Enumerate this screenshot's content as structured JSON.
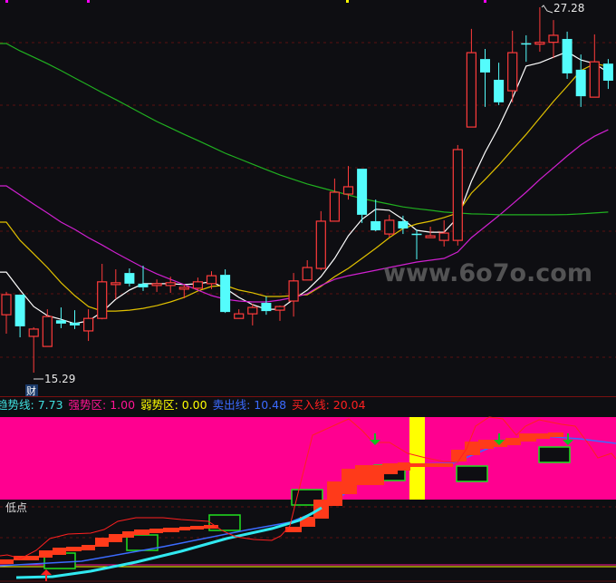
{
  "chart_data": {
    "type": "candlestick",
    "candle_fields": [
      "open",
      "close",
      "high",
      "low"
    ],
    "candles": [
      [
        17.19,
        17.85,
        17.94,
        16.57
      ],
      [
        17.85,
        16.81,
        17.85,
        16.45
      ],
      [
        16.48,
        16.72,
        16.78,
        15.29
      ],
      [
        16.15,
        17.13,
        17.37,
        16.15
      ],
      [
        17.01,
        16.9,
        17.43,
        16.75
      ],
      [
        16.93,
        16.84,
        17.34,
        16.72
      ],
      [
        16.66,
        17.07,
        17.37,
        16.33
      ],
      [
        17.07,
        18.27,
        18.86,
        17.04
      ],
      [
        18.18,
        18.24,
        18.68,
        17.7
      ],
      [
        18.56,
        18.21,
        18.71,
        18.12
      ],
      [
        18.21,
        18.09,
        18.8,
        17.97
      ],
      [
        18.15,
        18.21,
        18.35,
        17.94
      ],
      [
        18.15,
        18.24,
        18.44,
        17.91
      ],
      [
        18.03,
        18.09,
        18.18,
        17.73
      ],
      [
        18.06,
        18.27,
        18.41,
        18.0
      ],
      [
        18.21,
        18.47,
        18.62,
        18.03
      ],
      [
        18.5,
        17.28,
        18.68,
        17.25
      ],
      [
        17.07,
        17.22,
        17.37,
        17.07
      ],
      [
        17.22,
        17.43,
        17.55,
        16.84
      ],
      [
        17.58,
        17.31,
        17.79,
        17.19
      ],
      [
        17.34,
        17.46,
        17.49,
        16.99
      ],
      [
        17.64,
        18.3,
        18.56,
        17.13
      ],
      [
        18.33,
        18.74,
        18.98,
        18.33
      ],
      [
        18.71,
        20.26,
        20.59,
        18.65
      ],
      [
        20.26,
        21.21,
        21.66,
        20.26
      ],
      [
        21.15,
        21.39,
        22.07,
        20.97
      ],
      [
        21.98,
        20.47,
        21.98,
        20.2
      ],
      [
        20.26,
        19.96,
        20.97,
        19.93
      ],
      [
        19.84,
        20.29,
        20.47,
        19.72
      ],
      [
        20.26,
        20.02,
        20.44,
        19.84
      ],
      [
        19.85,
        19.84,
        19.99,
        19.01
      ],
      [
        19.72,
        19.78,
        20.08,
        19.72
      ],
      [
        19.63,
        19.87,
        20.29,
        19.43
      ],
      [
        19.63,
        22.61,
        22.76,
        19.46
      ],
      [
        23.35,
        25.79,
        26.57,
        23.35
      ],
      [
        25.58,
        25.14,
        25.91,
        24.01
      ],
      [
        24.9,
        24.16,
        25.46,
        24.07
      ],
      [
        24.54,
        25.79,
        26.51,
        24.16
      ],
      [
        26.1,
        26.07,
        26.36,
        25.49
      ],
      [
        26.07,
        26.13,
        27.28,
        25.82
      ],
      [
        26.13,
        26.36,
        26.86,
        25.61
      ],
      [
        26.24,
        25.11,
        26.48,
        24.93
      ],
      [
        25.23,
        24.36,
        25.73,
        24.01
      ],
      [
        24.33,
        25.49,
        26.39,
        24.33
      ],
      [
        25.43,
        24.87,
        25.58,
        24.6
      ]
    ],
    "moving_averages": [
      {
        "color": "#ffffff",
        "values": [
          18.59,
          18.0,
          17.46,
          17.16,
          17.04,
          16.9,
          16.99,
          17.28,
          17.7,
          18.0,
          18.21,
          18.21,
          18.21,
          18.18,
          18.21,
          18.27,
          18.06,
          17.76,
          17.52,
          17.37,
          17.37,
          17.7,
          18.0,
          18.44,
          19.04,
          19.78,
          20.32,
          20.65,
          20.62,
          20.32,
          19.96,
          19.9,
          19.9,
          20.38,
          21.57,
          22.52,
          23.35,
          24.3,
          25.35,
          25.46,
          25.64,
          25.82,
          25.55,
          25.43,
          25.14
        ]
      },
      {
        "color": "#e0c000",
        "values": [
          20.23,
          19.63,
          19.19,
          18.74,
          18.24,
          17.82,
          17.46,
          17.31,
          17.31,
          17.34,
          17.4,
          17.49,
          17.61,
          17.76,
          17.97,
          18.12,
          18.15,
          18.0,
          17.91,
          17.79,
          17.79,
          17.82,
          17.85,
          18.12,
          18.44,
          18.71,
          19.04,
          19.37,
          19.72,
          20.02,
          20.17,
          20.26,
          20.38,
          20.53,
          21.18,
          21.63,
          22.1,
          22.61,
          23.11,
          23.65,
          24.19,
          24.69,
          25.2,
          25.43,
          25.34
        ]
      },
      {
        "color": "#d020d0",
        "values": [
          21.42,
          21.12,
          20.82,
          20.53,
          20.23,
          19.99,
          19.72,
          19.48,
          19.22,
          18.98,
          18.74,
          18.53,
          18.35,
          18.18,
          18.0,
          17.82,
          17.7,
          17.64,
          17.61,
          17.61,
          17.67,
          17.76,
          17.88,
          18.15,
          18.35,
          18.47,
          18.56,
          18.65,
          18.74,
          18.83,
          18.92,
          18.98,
          19.04,
          19.25,
          19.72,
          20.08,
          20.44,
          20.82,
          21.21,
          21.63,
          22.01,
          22.4,
          22.76,
          23.05,
          23.26
        ]
      },
      {
        "color": "#20b020",
        "values": [
          26.09,
          25.85,
          25.64,
          25.43,
          25.2,
          24.96,
          24.72,
          24.48,
          24.25,
          24.01,
          23.77,
          23.53,
          23.32,
          23.11,
          22.91,
          22.7,
          22.49,
          22.31,
          22.13,
          21.95,
          21.78,
          21.63,
          21.48,
          21.36,
          21.24,
          21.12,
          21.0,
          20.91,
          20.82,
          20.73,
          20.67,
          20.62,
          20.56,
          20.53,
          20.5,
          20.49,
          20.47,
          20.47,
          20.47,
          20.47,
          20.47,
          20.48,
          20.5,
          20.53,
          20.56
        ]
      }
    ],
    "ylim": [
      15.29,
      27.28
    ],
    "grid": "dashed horizontal",
    "annotations": {
      "high_label": "27.28",
      "low_label": "15.29",
      "marker_char": "财"
    },
    "up_color": "#ff3b3b",
    "down_color": "#54fcfc"
  },
  "indicator": {
    "legend": [
      {
        "label": "趋势线: ",
        "value": "7.73",
        "color": "#40e0e0"
      },
      {
        "label": "强势区: ",
        "value": "1.00",
        "color": "#ff1493"
      },
      {
        "label": "弱势区: ",
        "value": "0.00",
        "color": "#ffff00"
      },
      {
        "label": "卖出线: ",
        "value": "10.48",
        "color": "#3b6bff"
      },
      {
        "label": "买入线: ",
        "value": "20.04",
        "color": "#ff2020"
      }
    ],
    "lower_label": "低点",
    "zone_color": "#ff0090"
  },
  "watermark": "www.6o7o.com"
}
